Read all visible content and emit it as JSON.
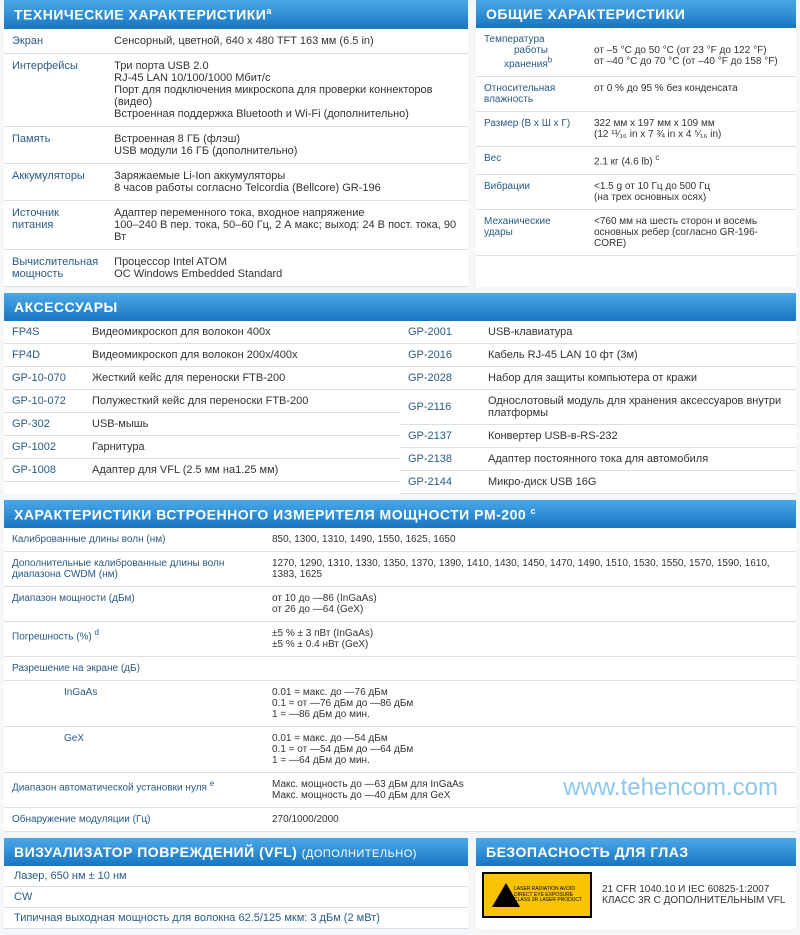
{
  "tech": {
    "title": "ТЕХНИЧЕСКИЕ ХАРАКТЕРИСТИКИ",
    "sup": "a",
    "rows": [
      {
        "label": "Экран",
        "value": "Сенсорный, цветной, 640 x 480 TFT 163 мм (6.5 in)"
      },
      {
        "label": "Интерфейсы",
        "value": "Три порта USB 2.0\nRJ-45 LAN 10/100/1000 Мбит/с\nПорт для подключения микроскопа для проверки коннекторов (видео)\nВстроенная поддержка Bluetooth и Wi-Fi (дополнительно)"
      },
      {
        "label": "Память",
        "value": "Встроенная 8 ГБ (флэш)\nUSB модули 16 ГБ (дополнительно)"
      },
      {
        "label": "Аккумуляторы",
        "value": "Заряжаемые Li-Ion аккумуляторы\n8 часов работы согласно Telcordia (Bellcore) GR-196"
      },
      {
        "label": "Источник питания",
        "value": "Адаптер переменного тока, входное напряжение\n100–240 В пер. тока, 50–60 Гц, 2 А макс; выход: 24 В пост. тока, 90 Вт"
      },
      {
        "label": "Вычислительная мощность",
        "value": "Процессор Intel ATOM\nОС Windows Embedded Standard"
      }
    ]
  },
  "general": {
    "title": "ОБЩИЕ ХАРАКТЕРИСТИКИ",
    "rows": [
      {
        "label": "Температура",
        "sub1": "работы",
        "sub2": "хранения",
        "supb": "b",
        "val1": "от –5 °C до 50 °C (от 23 °F до 122 °F)",
        "val2": "от –40 °C до 70 °C (от –40 °F до 158 °F)"
      },
      {
        "label": "Относительная влажность",
        "value": "от 0 % до 95 % без конденсата"
      },
      {
        "label": "Размер (В x Ш x Г)",
        "value": "322 мм x 197 мм x 109 мм\n(12 ¹¹⁄₁₆ in x 7 ¾ in x 4 ⁵⁄₁₆ in)"
      },
      {
        "label": "Вес",
        "value": "2.1 кг (4.6 lb)",
        "supc": "c"
      },
      {
        "label": "Вибрации",
        "value": "<1.5 g от 10 Гц до 500 Гц\n(на трех основных осях)"
      },
      {
        "label": "Механические удары",
        "value": "<760 мм на шесть сторон и восемь основных ребер (согласно GR-196-CORE)"
      }
    ]
  },
  "acc": {
    "title": "АКСЕССУАРЫ",
    "left": [
      {
        "code": "FP4S",
        "desc": "Видеомикроскоп для волокон 400x"
      },
      {
        "code": "FP4D",
        "desc": "Видеомикроскоп для волокон 200x/400x"
      },
      {
        "code": "GP-10-070",
        "desc": "Жесткий кейс для переноски FTB-200"
      },
      {
        "code": "GP-10-072",
        "desc": "Полужесткий кейс для переноски FTB-200"
      },
      {
        "code": "GP-302",
        "desc": "USB-мышь"
      },
      {
        "code": "GP-1002",
        "desc": "Гарнитура"
      },
      {
        "code": "GP-1008",
        "desc": "Адаптер для VFL (2.5 мм на1.25 мм)"
      }
    ],
    "right": [
      {
        "code": "GP-2001",
        "desc": "USB-клавиатура"
      },
      {
        "code": "GP-2016",
        "desc": "Кабель RJ-45 LAN 10 фт (3м)"
      },
      {
        "code": "GP-2028",
        "desc": "Набор для защиты компьютера от кражи"
      },
      {
        "code": "GP-2116",
        "desc": "Однослотовый модуль для хранения аксессуаров внутри платформы"
      },
      {
        "code": "GP-2137",
        "desc": "Конвертер USB-в-RS-232"
      },
      {
        "code": "GP-2138",
        "desc": "Адаптер постоянного тока для автомобиля"
      },
      {
        "code": "GP-2144",
        "desc": "Микро-диск USB 16G"
      }
    ]
  },
  "pm": {
    "title": "ХАРАКТЕРИСТИКИ ВСТРОЕННОГО ИЗМЕРИТЕЛЯ МОЩНОСТИ PM-200",
    "sup": "c",
    "rows": [
      {
        "label": "Калиброванные длины волн (нм)",
        "value": "850, 1300, 1310, 1490, 1550, 1625, 1650"
      },
      {
        "label": "Дополнительные калиброванные длины волн диапазона CWDM (нм)",
        "value": "1270, 1290, 1310, 1330, 1350, 1370, 1390, 1410, 1430, 1450, 1470, 1490, 1510, 1530, 1550, 1570, 1590, 1610, 1383, 1625"
      },
      {
        "label": "Диапазон мощности (дБм)",
        "value": "от 10 до —86 (InGaAs)\nот 26 до —64 (GeX)"
      },
      {
        "label": "Погрешность (%)",
        "supd": "d",
        "value": "±5 % ± 3 пВт (InGaAs)\n±5 % ± 0.4 нВт (GeX)"
      },
      {
        "label": "Разрешение на экране (дБ)",
        "value": ""
      },
      {
        "label": "InGaAs",
        "indent": true,
        "value": "0.01 = макс. до —76 дБм\n0.1 = от —76 дБм до —86 дБм\n1 = —86 дБм до мин."
      },
      {
        "label": "GeX",
        "indent": true,
        "value": "0.01 = макс. до —54 дБм\n0.1 = от —54 дБм до —64 дБм\n1 = —64 дБм до мин."
      },
      {
        "label": "Диапазон автоматической установки нуля",
        "supe": "e",
        "value": "Макс. мощность до —63 дБм для InGaAs\nМакс. мощность до —40 дБм для GeX"
      },
      {
        "label": "Обнаружение модуляции (Гц)",
        "value": "270/1000/2000"
      }
    ]
  },
  "vfl": {
    "title": "ВИЗУАЛИЗАТОР ПОВРЕЖДЕНИЙ (VFL)",
    "sub": "(ДОПОЛНИТЕЛЬНО)",
    "rows": [
      {
        "label": "Лазер, 650 нм ± 10 нм",
        "value": ""
      },
      {
        "label": "CW",
        "value": ""
      },
      {
        "label": "Типичная выходная мощность для волокна 62.5/125 мкм: 3 дБм (2 мВт)",
        "value": ""
      }
    ]
  },
  "safety": {
    "title": "БЕЗОПАСНОСТЬ ДЛЯ ГЛАЗ",
    "line1": "21 CFR 1040.10 И IEC 60825-1:2007",
    "line2": "КЛАСС 3R С ДОПОЛНИТЕЛЬНЫМ VFL",
    "badge": "LASER RADIATION\nAVOID DIRECT EYE EXPOSURE\nCLASS 3R LASER PRODUCT"
  },
  "watermark": "www.tehencom.com",
  "colors": {
    "header_grad_top": "#4aa8e8",
    "header_grad_bottom": "#1876c2",
    "label_color": "#2a5a85",
    "border_color": "#d8e0e8",
    "watermark_color": "#5cb0ea",
    "badge_bg": "#f8c300"
  }
}
